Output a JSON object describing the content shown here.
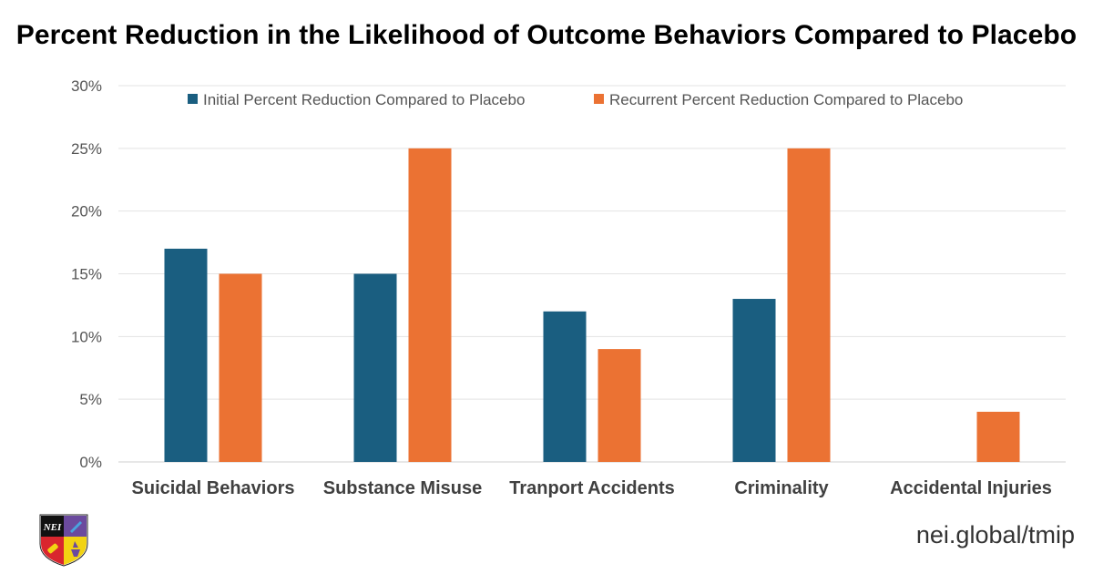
{
  "title": "Percent Reduction in the Likelihood of Outcome Behaviors Compared to Placebo",
  "footer": {
    "url": "nei.global/tmip"
  },
  "logo": {
    "text": "NEI"
  },
  "colors": {
    "initial": "#1a5e80",
    "recurrent": "#eb7233",
    "grid": "#e3e3e3"
  },
  "chart_data": {
    "type": "bar",
    "title": "Percent Reduction in the Likelihood of Outcome Behaviors Compared to Placebo",
    "xlabel": "",
    "ylabel": "",
    "ylim": [
      0,
      30
    ],
    "yticks": [
      "0%",
      "5%",
      "10%",
      "15%",
      "20%",
      "25%",
      "30%"
    ],
    "grid": true,
    "legend_position": "top",
    "categories": [
      "Suicidal Behaviors",
      "Substance Misuse",
      "Tranport Accidents",
      "Criminality",
      "Accidental Injuries"
    ],
    "series": [
      {
        "name": "Initial Percent Reduction Compared to Placebo",
        "values": [
          17,
          15,
          12,
          13,
          null
        ]
      },
      {
        "name": "Recurrent Percent Reduction Compared to Placebo",
        "values": [
          15,
          25,
          9,
          25,
          4
        ]
      }
    ]
  }
}
